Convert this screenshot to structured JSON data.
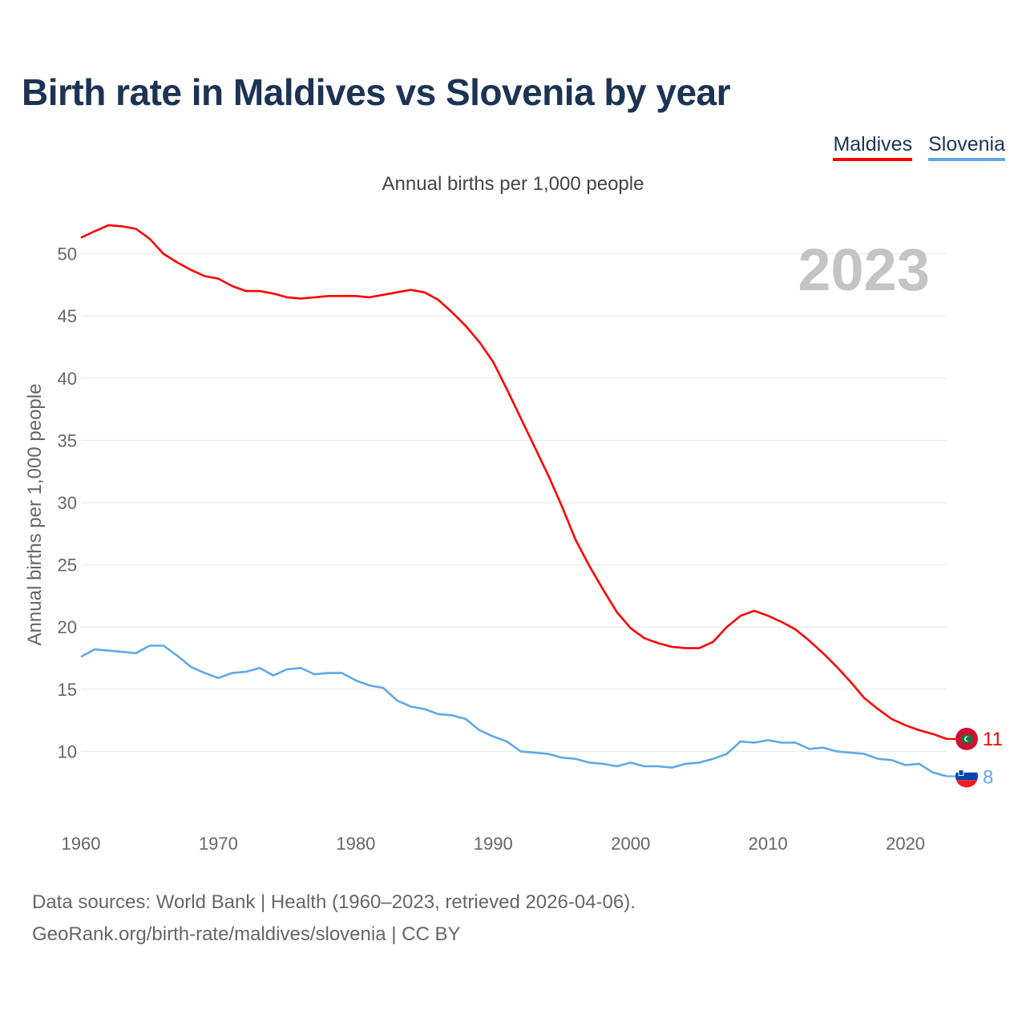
{
  "title": "Birth rate in Maldives vs Slovenia by year",
  "subtitle": "Annual births per 1,000 people",
  "legend": [
    {
      "label": "Maldives",
      "color": "#ff0000"
    },
    {
      "label": "Slovenia",
      "color": "#5fa8e8"
    }
  ],
  "year_watermark": "2023",
  "flags": {
    "maldives_icon": "maldives-flag-icon",
    "slovenia_icon": "slovenia-flag-icon"
  },
  "footer": {
    "line1": "Data sources: World Bank | Health (1960–2023, retrieved 2026-04-06).",
    "line2": "GeoRank.org/birth-rate/maldives/slovenia | CC BY"
  },
  "chart_data": {
    "type": "line",
    "title": "Birth rate in Maldives vs Slovenia by year",
    "ylabel": "Annual births per 1,000 people",
    "xlabel": "",
    "xlim": [
      1960,
      2023
    ],
    "ylim": [
      5,
      53
    ],
    "x_ticks": [
      1960,
      1970,
      1980,
      1990,
      2000,
      2010,
      2020
    ],
    "y_ticks": [
      10,
      15,
      20,
      25,
      30,
      35,
      40,
      45,
      50
    ],
    "grid": true,
    "x": [
      1960,
      1961,
      1962,
      1963,
      1964,
      1965,
      1966,
      1967,
      1968,
      1969,
      1970,
      1971,
      1972,
      1973,
      1974,
      1975,
      1976,
      1977,
      1978,
      1979,
      1980,
      1981,
      1982,
      1983,
      1984,
      1985,
      1986,
      1987,
      1988,
      1989,
      1990,
      1991,
      1992,
      1993,
      1994,
      1995,
      1996,
      1997,
      1998,
      1999,
      2000,
      2001,
      2002,
      2003,
      2004,
      2005,
      2006,
      2007,
      2008,
      2009,
      2010,
      2011,
      2012,
      2013,
      2014,
      2015,
      2016,
      2017,
      2018,
      2019,
      2020,
      2021,
      2022,
      2023
    ],
    "series": [
      {
        "name": "Maldives",
        "color": "#ff0000",
        "end_label": "11",
        "values": [
          51.3,
          51.8,
          52.3,
          52.2,
          52.0,
          51.2,
          50.0,
          49.3,
          48.7,
          48.2,
          48.0,
          47.4,
          47.0,
          47.0,
          46.8,
          46.5,
          46.4,
          46.5,
          46.6,
          46.6,
          46.6,
          46.5,
          46.7,
          46.9,
          47.1,
          46.9,
          46.3,
          45.3,
          44.2,
          42.9,
          41.3,
          39.1,
          36.8,
          34.5,
          32.2,
          29.7,
          27.0,
          24.9,
          23.0,
          21.2,
          19.9,
          19.1,
          18.7,
          18.4,
          18.3,
          18.3,
          18.8,
          20.0,
          20.9,
          21.3,
          20.9,
          20.4,
          19.8,
          18.9,
          17.9,
          16.8,
          15.6,
          14.3,
          13.4,
          12.6,
          12.1,
          11.7,
          11.4,
          11.0
        ]
      },
      {
        "name": "Slovenia",
        "color": "#5fa8e8",
        "end_label": "8",
        "values": [
          17.6,
          18.2,
          18.1,
          18.0,
          17.9,
          18.5,
          18.5,
          17.7,
          16.8,
          16.3,
          15.9,
          16.3,
          16.4,
          16.7,
          16.1,
          16.6,
          16.7,
          16.2,
          16.3,
          16.3,
          15.7,
          15.3,
          15.1,
          14.1,
          13.6,
          13.4,
          13.0,
          12.9,
          12.6,
          11.7,
          11.2,
          10.8,
          10.0,
          9.9,
          9.8,
          9.5,
          9.4,
          9.1,
          9.0,
          8.8,
          9.1,
          8.8,
          8.8,
          8.7,
          9.0,
          9.1,
          9.4,
          9.8,
          10.8,
          10.7,
          10.9,
          10.7,
          10.7,
          10.2,
          10.3,
          10.0,
          9.9,
          9.8,
          9.4,
          9.3,
          8.9,
          9.0,
          8.3,
          8.0
        ]
      }
    ]
  }
}
